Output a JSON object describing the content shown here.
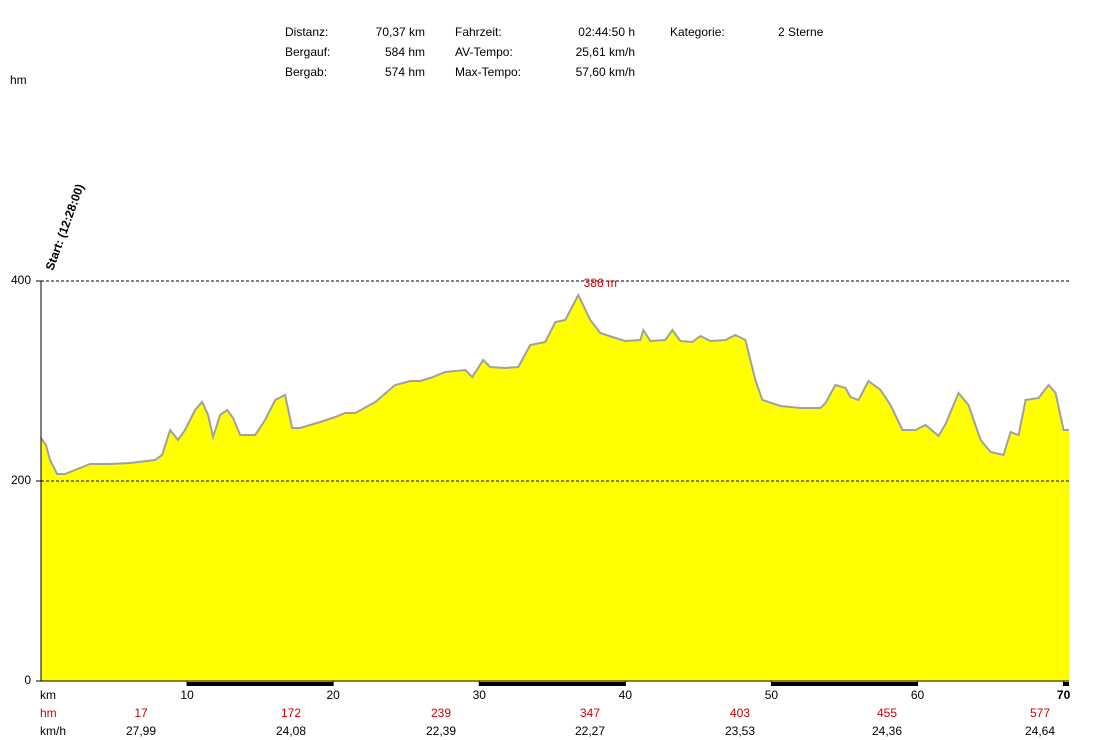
{
  "chart_data": {
    "type": "area",
    "stats": [
      [
        {
          "label": "Distanz:",
          "value": "70,37 km"
        },
        {
          "label": "Bergauf:",
          "value": "584 hm"
        },
        {
          "label": "Bergab:",
          "value": "574 hm"
        }
      ],
      [
        {
          "label": "Fahrzeit:",
          "value": "02:44:50 h"
        },
        {
          "label": "AV-Tempo:",
          "value": "25,61 km/h"
        },
        {
          "label": "Max-Tempo:",
          "value": "57,60 km/h"
        }
      ],
      [
        {
          "label": "Kategorie:",
          "value": "2 Sterne"
        }
      ]
    ],
    "y_label": "hm",
    "start_label": "Start: (12:28:00)",
    "peak_label": "386 m",
    "x_label": "km",
    "x": [
      0,
      0.34,
      0.62,
      1.1,
      1.64,
      2.33,
      3.36,
      4.73,
      6.1,
      7.81,
      8.29,
      8.84,
      9.38,
      9.86,
      10.55,
      11.03,
      11.44,
      11.78,
      12.26,
      12.74,
      13.15,
      13.63,
      14.66,
      15.34,
      16.03,
      16.71,
      17.19,
      17.74,
      19.11,
      20.14,
      20.82,
      21.51,
      22.88,
      24.25,
      25.27,
      25.96,
      26.64,
      27.67,
      29.04,
      29.52,
      30.27,
      30.75,
      31.78,
      32.67,
      33.49,
      34.52,
      35.21,
      35.89,
      36.78,
      37.6,
      38.29,
      39.32,
      40,
      41.03,
      41.23,
      41.71,
      42.74,
      43.22,
      43.77,
      44.59,
      45.14,
      45.82,
      46.85,
      47.53,
      48.22,
      48.9,
      49.38,
      50.62,
      51.99,
      53.36,
      53.7,
      54.38,
      55.07,
      55.41,
      55.96,
      56.64,
      57.47,
      58.15,
      58.97,
      59.86,
      60.55,
      61.44,
      61.92,
      62.81,
      63.49,
      64.32,
      65,
      65.89,
      66.37,
      66.92,
      67.4,
      68.29,
      68.97,
      69.45,
      70,
      70.37
    ],
    "values": [
      243,
      236,
      221,
      207,
      207,
      211,
      217,
      217,
      218,
      221,
      226,
      251,
      241,
      251,
      271,
      279,
      266,
      244,
      266,
      271,
      263,
      246,
      246,
      261,
      281,
      286,
      253,
      253,
      259,
      264,
      268,
      268,
      279,
      296,
      300,
      300,
      303,
      309,
      311,
      304,
      321,
      314,
      313,
      314,
      336,
      339,
      359,
      361,
      386,
      361,
      348,
      343,
      340,
      341,
      351,
      340,
      341,
      351,
      340,
      339,
      345,
      340,
      341,
      346,
      341,
      301,
      281,
      275,
      273,
      273,
      278,
      296,
      293,
      284,
      281,
      300,
      291,
      276,
      251,
      251,
      256,
      245,
      257,
      288,
      276,
      241,
      229,
      226,
      249,
      246,
      281,
      283,
      296,
      288,
      251,
      251
    ],
    "color": "#ffff00",
    "line_color": "#a0a0a0",
    "xlim": [
      0,
      70.37
    ],
    "ylim": [
      0,
      400
    ],
    "xticks": [
      10,
      20,
      30,
      40,
      50,
      60,
      70
    ],
    "yticks": [
      0,
      200,
      400
    ],
    "grid": true,
    "hm_row": {
      "label": "hm",
      "values": [
        17,
        172,
        239,
        347,
        403,
        455,
        577
      ]
    },
    "speed_row": {
      "label": "km/h",
      "values": [
        "27,99",
        "24,08",
        "22,39",
        "22,27",
        "23,53",
        "24,36",
        "24,64"
      ]
    }
  }
}
